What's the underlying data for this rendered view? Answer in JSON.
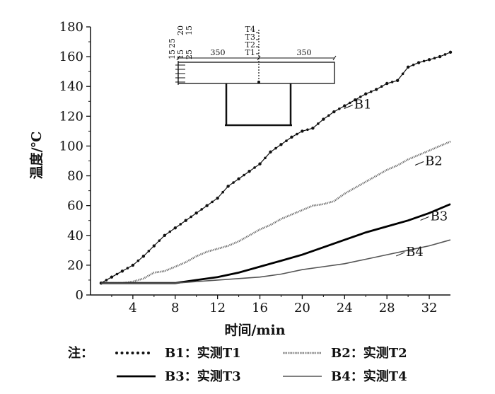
{
  "chart_data": {
    "type": "line",
    "xlabel": "时间/min",
    "ylabel": "温度/℃",
    "xlim": [
      0,
      34
    ],
    "ylim": [
      0,
      180
    ],
    "x_ticks": [
      4,
      8,
      12,
      16,
      20,
      24,
      28,
      32
    ],
    "y_ticks": [
      0,
      20,
      40,
      60,
      80,
      100,
      120,
      140,
      160,
      180
    ],
    "grid": false,
    "legend_placement": "bottom",
    "legend_prefix": "注：",
    "series": [
      {
        "name": "B1",
        "legend": "B1：实测T1",
        "style": "dotted",
        "color": "#111111",
        "x": [
          1,
          2,
          3,
          4,
          5,
          6,
          7,
          8,
          9,
          10,
          11,
          12,
          13,
          14,
          15,
          16,
          17,
          18,
          19,
          20,
          21,
          22,
          23,
          24,
          25,
          26,
          27,
          28,
          29,
          30,
          31,
          32,
          33,
          34
        ],
        "y": [
          8,
          12,
          16,
          20,
          26,
          33,
          40,
          45,
          50,
          55,
          60,
          65,
          73,
          78,
          83,
          88,
          96,
          101,
          106,
          110,
          112,
          118,
          123,
          127,
          131,
          135,
          138,
          142,
          144,
          153,
          156,
          158,
          160,
          163
        ]
      },
      {
        "name": "B2",
        "legend": "B2：实测T2",
        "style": "hatched",
        "color": "#666666",
        "x": [
          1,
          2,
          3,
          4,
          5,
          6,
          7,
          8,
          9,
          10,
          11,
          12,
          13,
          14,
          15,
          16,
          17,
          18,
          19,
          20,
          21,
          22,
          23,
          24,
          25,
          26,
          27,
          28,
          29,
          30,
          31,
          32,
          33,
          34
        ],
        "y": [
          8,
          8,
          8,
          9,
          11,
          15,
          16,
          19,
          22,
          26,
          29,
          31,
          33,
          36,
          40,
          44,
          47,
          51,
          54,
          57,
          60,
          61,
          63,
          68,
          72,
          76,
          80,
          84,
          87,
          91,
          94,
          97,
          100,
          103
        ]
      },
      {
        "name": "B3",
        "legend": "B3：实测T3",
        "style": "thick",
        "color": "#000000",
        "x": [
          1,
          2,
          4,
          6,
          8,
          10,
          12,
          14,
          16,
          18,
          20,
          22,
          24,
          26,
          28,
          30,
          32,
          34
        ],
        "y": [
          8,
          8,
          8,
          8,
          8,
          10,
          12,
          15,
          19,
          23,
          27,
          32,
          37,
          42,
          46,
          50,
          55,
          61
        ]
      },
      {
        "name": "B4",
        "legend": "B4：实测T4",
        "style": "thin",
        "color": "#555555",
        "x": [
          1,
          2,
          4,
          6,
          8,
          10,
          12,
          14,
          16,
          18,
          20,
          22,
          24,
          26,
          28,
          30,
          32,
          34
        ],
        "y": [
          8,
          8,
          8,
          8,
          8,
          9,
          10,
          11,
          12,
          14,
          17,
          19,
          21,
          24,
          27,
          30,
          33,
          37
        ]
      }
    ],
    "inset": {
      "dimension_labels": [
        "350",
        "350"
      ],
      "left_stack_labels": [
        "25",
        "20",
        "15",
        "15",
        "25",
        "15"
      ],
      "thermocouple_labels": [
        "T4",
        "T3",
        "T2",
        "T1"
      ]
    }
  }
}
